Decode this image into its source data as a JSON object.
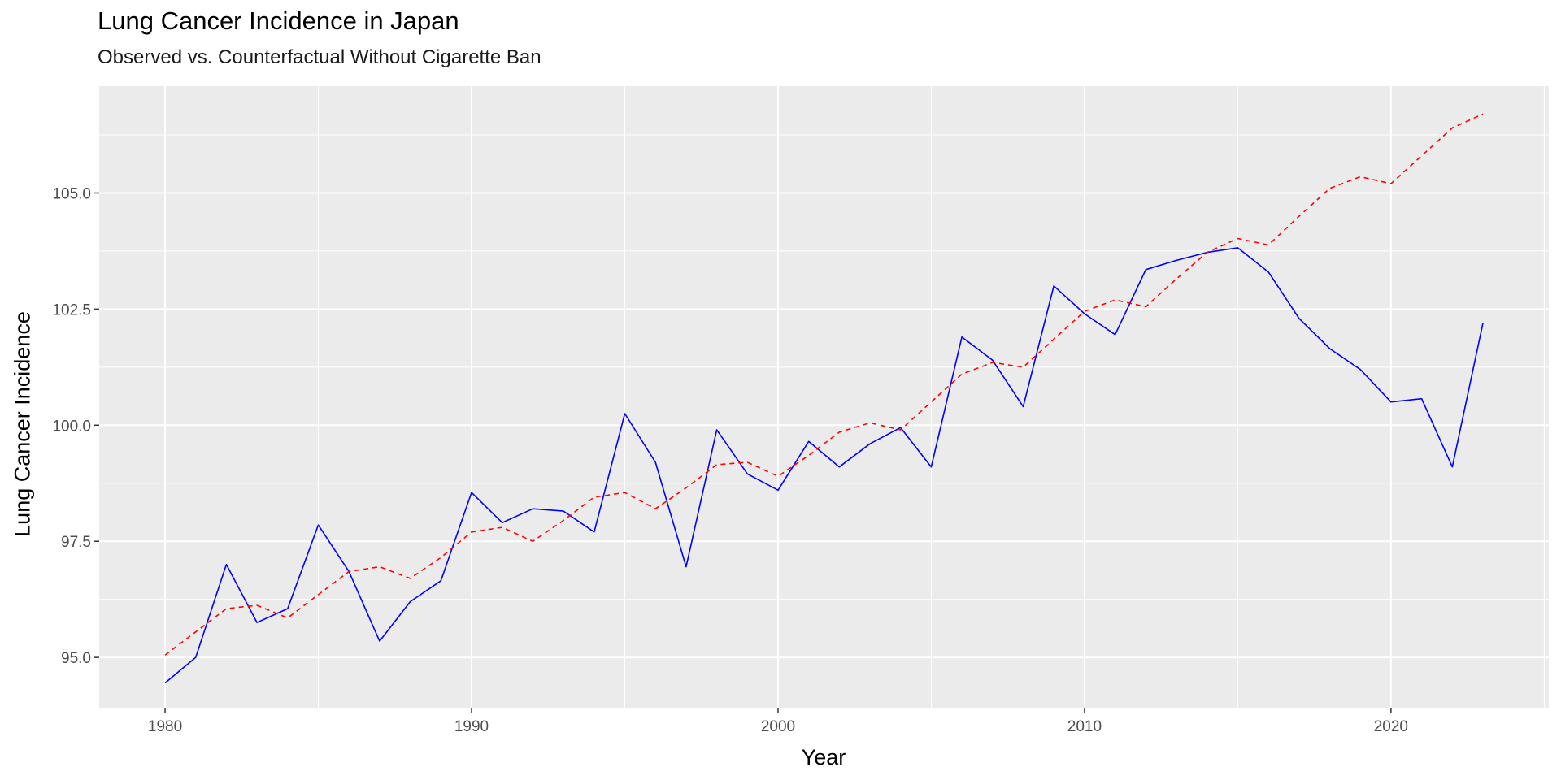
{
  "chart_data": {
    "type": "line",
    "title": "Lung Cancer Incidence in Japan",
    "subtitle": "Observed vs. Counterfactual Without Cigarette Ban",
    "xlabel": "Year",
    "ylabel": "Lung Cancer Incidence",
    "xlim": [
      1977.85,
      2025.15
    ],
    "ylim": [
      93.9,
      107.3
    ],
    "x_ticks": [
      1980,
      1990,
      2000,
      2010,
      2020
    ],
    "y_ticks": [
      95.0,
      97.5,
      100.0,
      102.5,
      105.0
    ],
    "y_tick_labels": [
      "95.0",
      "97.5",
      "100.0",
      "102.5",
      "105.0"
    ],
    "grid": true,
    "x": [
      1980,
      1981,
      1982,
      1983,
      1984,
      1985,
      1986,
      1987,
      1988,
      1989,
      1990,
      1991,
      1992,
      1993,
      1994,
      1995,
      1996,
      1997,
      1998,
      1999,
      2000,
      2001,
      2002,
      2003,
      2004,
      2005,
      2006,
      2007,
      2008,
      2009,
      2010,
      2011,
      2012,
      2013,
      2014,
      2015,
      2016,
      2017,
      2018,
      2019,
      2020,
      2021,
      2022,
      2023
    ],
    "series": [
      {
        "color": "#0000ff",
        "dash": "solid",
        "values": [
          94.45,
          95.0,
          97.0,
          95.75,
          96.05,
          97.85,
          96.85,
          95.35,
          96.2,
          96.65,
          98.55,
          97.9,
          98.2,
          98.15,
          97.7,
          100.25,
          99.2,
          96.95,
          99.9,
          98.95,
          98.6,
          99.65,
          99.1,
          99.6,
          99.95,
          99.1,
          101.9,
          101.4,
          100.4,
          103.0,
          102.4,
          101.95,
          103.35,
          103.55,
          103.72,
          103.82,
          103.3,
          102.3,
          101.65,
          101.2,
          100.5,
          100.57,
          99.1,
          102.2
        ]
      },
      {
        "color": "#ff0000",
        "dash": "dashed",
        "values": [
          95.05,
          95.55,
          96.05,
          96.12,
          95.85,
          96.35,
          96.85,
          96.95,
          96.7,
          97.15,
          97.7,
          97.8,
          97.5,
          97.95,
          98.45,
          98.55,
          98.2,
          98.65,
          99.15,
          99.2,
          98.9,
          99.35,
          99.85,
          100.05,
          99.9,
          100.5,
          101.1,
          101.35,
          101.25,
          101.85,
          102.45,
          102.7,
          102.55,
          103.15,
          103.72,
          104.02,
          103.88,
          104.5,
          105.1,
          105.35,
          105.2,
          105.8,
          106.4,
          106.7
        ]
      }
    ]
  }
}
